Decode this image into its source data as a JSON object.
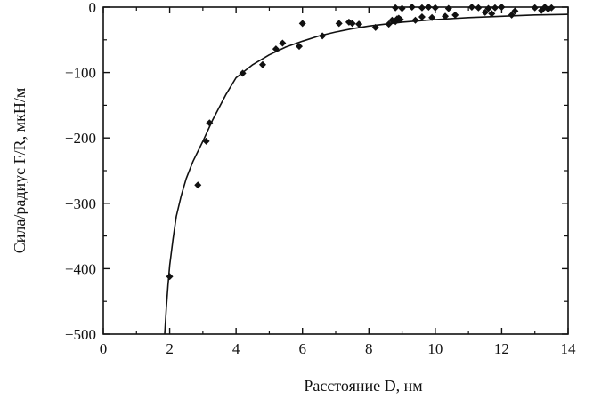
{
  "chart_data": {
    "type": "scatter",
    "xlabel": "Расстояние D, нм",
    "ylabel": "Сила/радиус F/R, мкН/м",
    "xlim": [
      0,
      14
    ],
    "ylim": [
      -500,
      0
    ],
    "x_ticks": [
      0,
      2,
      4,
      6,
      8,
      10,
      12,
      14
    ],
    "y_ticks": [
      0,
      -100,
      -200,
      -300,
      -400,
      -500
    ],
    "x_tick_labels": [
      "0",
      "2",
      "4",
      "6",
      "8",
      "10",
      "12",
      "14"
    ],
    "y_tick_labels": [
      "0",
      "−100",
      "−200",
      "−300",
      "−400",
      "−500"
    ],
    "grid": false,
    "marker_color": "#111111",
    "line_color": "#111111",
    "series": [
      {
        "kind": "points",
        "x": [
          2.0,
          2.85,
          3.1,
          3.2,
          4.2,
          4.8,
          5.2,
          5.4,
          5.9,
          6.0,
          6.6,
          7.1,
          7.4,
          7.5,
          7.7,
          8.2,
          8.6,
          8.7,
          8.8,
          8.85,
          8.9,
          8.95,
          9.4,
          9.6,
          9.9,
          10.3,
          10.6,
          11.5,
          11.7,
          12.3,
          12.4,
          13.2,
          13.4,
          8.8,
          9.0,
          9.3,
          9.6,
          9.8,
          10.0,
          10.4,
          11.1,
          11.3,
          11.6,
          11.8,
          12.0,
          13.0,
          13.3,
          13.5
        ],
        "y": [
          -412,
          -272,
          -205,
          -177,
          -101,
          -88,
          -64,
          -55,
          -60,
          -25,
          -44,
          -25,
          -23,
          -25,
          -26,
          -31,
          -26,
          -20,
          -22,
          -18,
          -17,
          -19,
          -20,
          -15,
          -16,
          -14,
          -12,
          -8,
          -10,
          -12,
          -6,
          -5,
          -3,
          -1,
          -2,
          0,
          -1,
          0,
          -1,
          -2,
          0,
          -1,
          -2,
          -1,
          0,
          -1,
          0,
          -1
        ]
      },
      {
        "kind": "fit-curve",
        "x": [
          1.85,
          1.9,
          1.95,
          2.0,
          2.1,
          2.2,
          2.35,
          2.5,
          2.7,
          3.0,
          3.3,
          3.7,
          4.0,
          4.5,
          5.0,
          5.5,
          6.0,
          6.5,
          7.0,
          7.5,
          8.0,
          9.0,
          10.0,
          11.0,
          12.0,
          13.0,
          14.0
        ],
        "y": [
          -500,
          -460,
          -425,
          -395,
          -355,
          -320,
          -288,
          -262,
          -236,
          -205,
          -172,
          -133,
          -108,
          -88,
          -73,
          -61,
          -52,
          -44,
          -38,
          -33,
          -29,
          -23,
          -19,
          -16,
          -14,
          -12,
          -11
        ]
      }
    ]
  }
}
